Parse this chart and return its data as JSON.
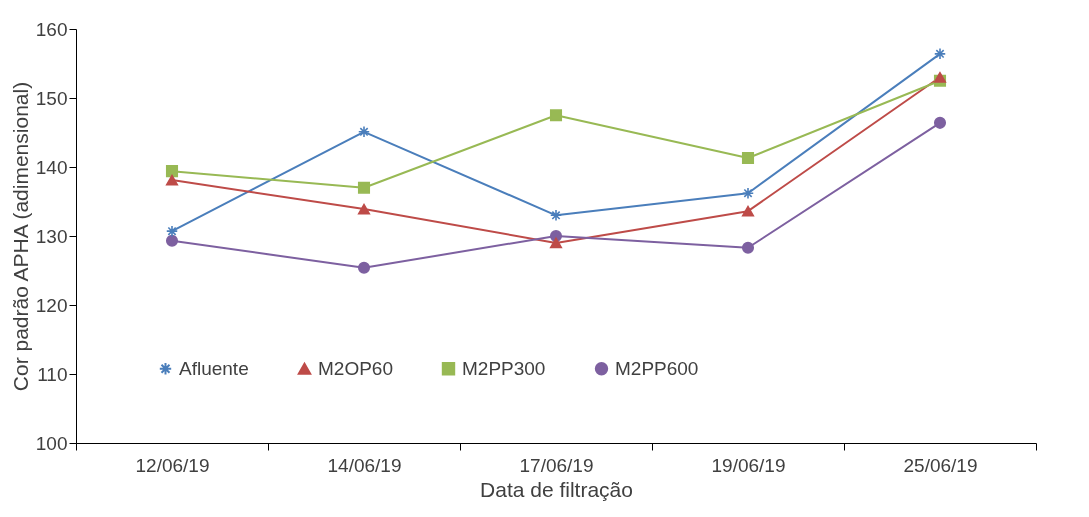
{
  "chart_data": {
    "type": "line",
    "xlabel": "Data de filtração",
    "ylabel": "Cor padrão APHA (adimensional)",
    "categories": [
      "12/06/19",
      "14/06/19",
      "17/06/19",
      "19/06/19",
      "25/06/19"
    ],
    "series": [
      {
        "name": "Afluente",
        "color": "#4a7ebb",
        "marker": "cross",
        "values": [
          130.7,
          145.1,
          133.0,
          136.2,
          156.4
        ]
      },
      {
        "name": "M2OP60",
        "color": "#be4b48",
        "marker": "triangle",
        "values": [
          138.1,
          133.9,
          129.0,
          133.6,
          153.0
        ]
      },
      {
        "name": "M2PP300",
        "color": "#98b954",
        "marker": "square",
        "values": [
          139.4,
          137.0,
          147.5,
          141.3,
          152.5
        ]
      },
      {
        "name": "M2PP600",
        "color": "#7d60a0",
        "marker": "circle",
        "values": [
          129.3,
          125.4,
          130.0,
          128.3,
          146.4
        ]
      }
    ],
    "ylim": [
      100,
      160
    ],
    "yticks": [
      100,
      110,
      120,
      130,
      140,
      150,
      160
    ],
    "grid": false,
    "legend": "bottom",
    "line_style": "solid"
  }
}
